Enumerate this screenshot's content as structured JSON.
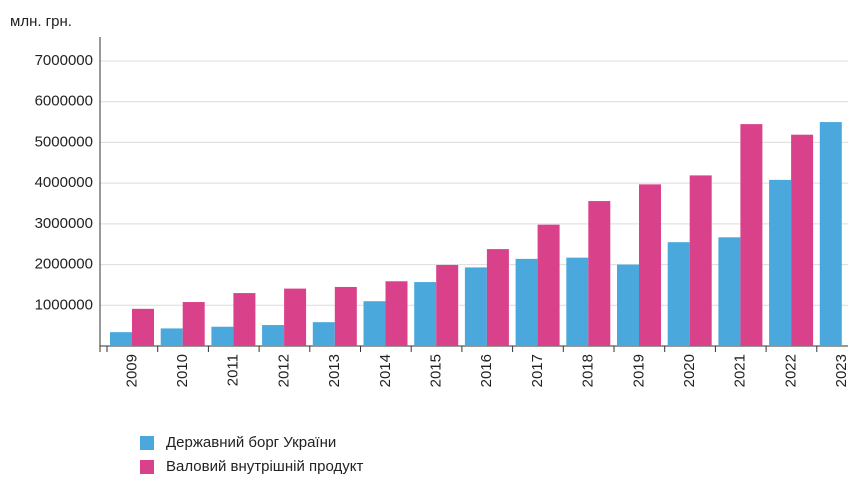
{
  "chart_data": {
    "type": "bar",
    "y_label": "млн. грн.",
    "categories": [
      "2009",
      "2010",
      "2011",
      "2012",
      "2013",
      "2014",
      "2015",
      "2016",
      "2017",
      "2018",
      "2019",
      "2020",
      "2021",
      "2022",
      "2023"
    ],
    "series": [
      {
        "name": "Державний борг України",
        "color": "#4aa8dc",
        "values": [
          340000,
          432000,
          473000,
          515000,
          585000,
          1100000,
          1570000,
          1930000,
          2140000,
          2170000,
          2000000,
          2550000,
          2670000,
          4080000,
          5500000
        ]
      },
      {
        "name": "Валовий внутрішній продукт",
        "color": "#d9428a",
        "values": [
          913000,
          1080000,
          1300000,
          1410000,
          1450000,
          1590000,
          1990000,
          2380000,
          2980000,
          3560000,
          3970000,
          4190000,
          5450000,
          5190000,
          null
        ]
      }
    ],
    "ylim": [
      0,
      7000000
    ],
    "yticks": [
      1000000,
      2000000,
      3000000,
      4000000,
      5000000,
      6000000,
      7000000
    ],
    "grid": true
  }
}
